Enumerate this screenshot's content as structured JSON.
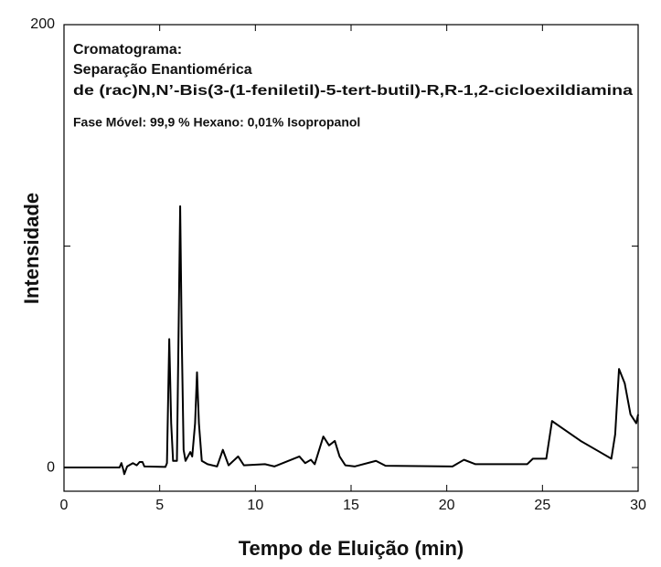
{
  "chart_data": {
    "type": "line",
    "annotations": [
      "Cromatograma:",
      "Separação Enantiomérica",
      "de (rac)N,N’-Bis(3-(1-feniletil)-5-tert-butil)-R,R-1,2-cicloexildiamina",
      "Fase Móvel: 99,9 % Hexano: 0,01% Isopropanol"
    ],
    "x_label": "Tempo de Eluição (min)",
    "y_label": "Intensidade",
    "xlim": [
      0,
      30
    ],
    "ylim": [
      -10.7,
      200
    ],
    "xticks": [
      0,
      5,
      10,
      15,
      20,
      25,
      30
    ],
    "yticks": [
      0,
      200
    ],
    "yminorticks": [
      100
    ],
    "series": [
      {
        "color": "#000000",
        "x": [
          0,
          2.9,
          3.0,
          3.1,
          3.15,
          3.3,
          3.6,
          3.8,
          3.95,
          4.1,
          4.2,
          5.3,
          5.38,
          5.45,
          5.5,
          5.6,
          5.7,
          5.9,
          6.0,
          6.07,
          6.15,
          6.25,
          6.35,
          6.6,
          6.7,
          6.85,
          6.95,
          7.05,
          7.2,
          7.5,
          8.0,
          8.3,
          8.6,
          9.1,
          9.4,
          10.5,
          11.0,
          12.3,
          12.6,
          12.9,
          13.1,
          13.55,
          13.85,
          14.15,
          14.4,
          14.7,
          15.2,
          16.3,
          16.8,
          20.3,
          20.9,
          21.5,
          24.2,
          24.5,
          25.2,
          25.5,
          26.0,
          27.0,
          28.0,
          28.6,
          28.8,
          29.0,
          29.3,
          29.6,
          29.9,
          30.0
        ],
        "values": [
          0,
          0,
          2,
          -1,
          -3,
          0.5,
          2,
          1,
          2.5,
          2.5,
          0.5,
          0.3,
          2,
          35,
          58,
          20,
          3,
          3,
          70,
          118,
          60,
          8,
          3,
          7,
          5,
          20,
          43,
          20,
          3,
          1.5,
          0.5,
          8,
          1,
          5,
          1,
          1.5,
          0.5,
          5,
          2,
          3.5,
          1.5,
          14,
          10,
          12,
          5,
          1,
          0.5,
          3,
          0.8,
          0.5,
          3.5,
          1.5,
          1.5,
          4,
          4,
          21,
          18,
          12,
          7,
          4,
          15,
          44.5,
          38,
          24,
          20,
          24
        ]
      }
    ]
  }
}
